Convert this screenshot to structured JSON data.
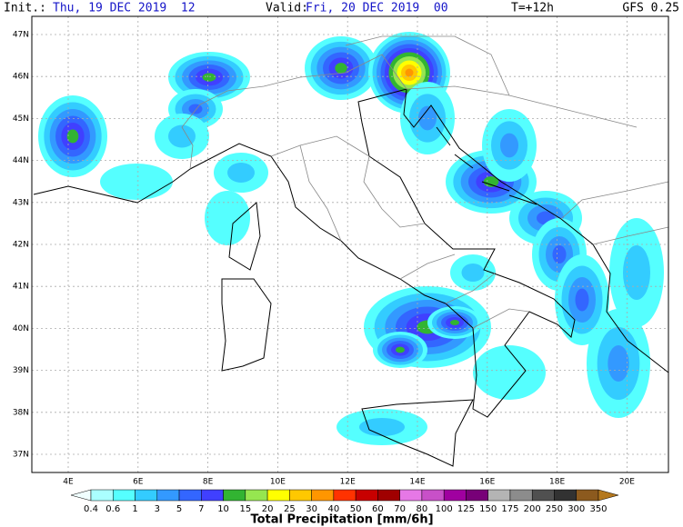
{
  "header": {
    "init_label": "Init.:",
    "init": "Thu, 19 DEC 2019  12",
    "valid_label": "Valid:",
    "valid": "Fri, 20 DEC 2019  00",
    "lead": "T=+12h",
    "model": "GFS 0.25"
  },
  "map": {
    "lat_labels": [
      "47N",
      "46N",
      "45N",
      "44N",
      "43N",
      "42N",
      "41N",
      "40N",
      "39N",
      "38N",
      "37N"
    ],
    "lon_labels": [
      "4E",
      "6E",
      "8E",
      "10E",
      "12E",
      "14E",
      "16E",
      "18E",
      "20E"
    ]
  },
  "legend": {
    "levels": [
      "0.4",
      "0.6",
      "1",
      "3",
      "5",
      "7",
      "10",
      "15",
      "20",
      "25",
      "30",
      "40",
      "50",
      "60",
      "70",
      "80",
      "100",
      "125",
      "150",
      "175",
      "200",
      "250",
      "300",
      "350"
    ],
    "colors": [
      "#f0ffff",
      "#aaffff",
      "#55ffff",
      "#33ccff",
      "#3399ff",
      "#3366ff",
      "#4040ff",
      "#32b432",
      "#96e650",
      "#ffff00",
      "#ffc800",
      "#ff9600",
      "#ff3200",
      "#c80000",
      "#a00000",
      "#e678e6",
      "#c850c8",
      "#a000a0",
      "#780078",
      "#b4b4b4",
      "#8c8c8c",
      "#505050",
      "#323232",
      "#8c5a1e",
      "#b4781e"
    ],
    "title": "Total Precipitation [mm/6h]"
  }
}
